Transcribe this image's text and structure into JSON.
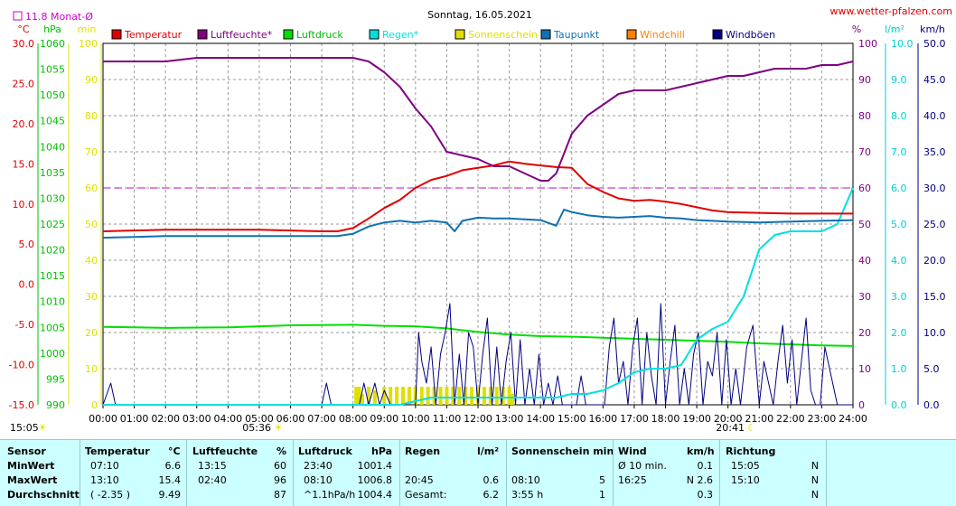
{
  "header": {
    "title": "Sonntag, 16.05.2021",
    "site": "www.wetter-pfalzen.com",
    "monthly_avg": "11.8 Monat-Ø"
  },
  "axes": {
    "temp_unit": "°C",
    "pressure_unit": "hPa",
    "sun_unit": "min",
    "humidity_unit": "%",
    "rain_unit": "l/m²",
    "wind_unit": "km/h",
    "temp_ticks": [
      "30.0",
      "25.0",
      "20.0",
      "15.0",
      "10.0",
      "5.0",
      "0.0",
      "-5.0",
      "-10.0",
      "-15.0"
    ],
    "pressure_ticks": [
      "1060",
      "1055",
      "1050",
      "1045",
      "1040",
      "1035",
      "1030",
      "1025",
      "1020",
      "1015",
      "1010",
      "1005",
      "1000",
      "995",
      "990"
    ],
    "sun_ticks": [
      "100",
      "90",
      "80",
      "70",
      "60",
      "50",
      "40",
      "30",
      "20",
      "10",
      "0"
    ],
    "humidity_ticks": [
      "100",
      "90",
      "80",
      "70",
      "60",
      "50",
      "40",
      "30",
      "20",
      "10",
      "0"
    ],
    "rain_ticks": [
      "10.0",
      "9.0",
      "8.0",
      "7.0",
      "6.0",
      "5.0",
      "4.0",
      "3.0",
      "2.0",
      "1.0",
      "0.0"
    ],
    "wind_ticks": [
      "50.0",
      "45.0",
      "40.0",
      "35.0",
      "30.0",
      "25.0",
      "20.0",
      "15.0",
      "10.0",
      "5.0",
      "0.0"
    ],
    "time_ticks": [
      "00:00",
      "01:00",
      "02:00",
      "03:00",
      "04:00",
      "05:00",
      "06:00",
      "07:00",
      "08:00",
      "09:00",
      "10:00",
      "11:00",
      "12:00",
      "13:00",
      "14:00",
      "15:00",
      "16:00",
      "17:00",
      "18:00",
      "19:00",
      "20:00",
      "21:00",
      "22:00",
      "23:00",
      "24:00"
    ],
    "sunrise": "05:36",
    "sunset": "20:41",
    "current_time": "15:05"
  },
  "chart_data": {
    "type": "line",
    "title": "Sonntag, 16.05.2021",
    "x_unit": "hours",
    "xlim": [
      0,
      24
    ],
    "legend_position": "top",
    "grid": true,
    "series": [
      {
        "name": "Temperatur",
        "color": "#e00000",
        "axis": "°C",
        "ylim": [
          -15,
          30
        ],
        "x": [
          0,
          1,
          2,
          3,
          4,
          5,
          6,
          7,
          7.5,
          8,
          8.5,
          9,
          9.5,
          10,
          10.5,
          11,
          11.5,
          12,
          12.5,
          13,
          13.5,
          14,
          14.5,
          15,
          15.5,
          16,
          16.5,
          17,
          17.5,
          18,
          18.5,
          19,
          19.5,
          20,
          21,
          22,
          23,
          24
        ],
        "y": [
          6.6,
          6.7,
          6.8,
          6.8,
          6.8,
          6.8,
          6.7,
          6.6,
          6.6,
          7.0,
          8.2,
          9.5,
          10.5,
          12.0,
          13.0,
          13.5,
          14.2,
          14.5,
          14.8,
          15.3,
          15.0,
          14.8,
          14.6,
          14.5,
          12.5,
          11.5,
          10.7,
          10.4,
          10.5,
          10.3,
          10.0,
          9.6,
          9.2,
          9.0,
          8.9,
          8.8,
          8.8,
          8.8
        ]
      },
      {
        "name": "Luftfeuchte*",
        "color": "#800080",
        "axis": "%",
        "ylim": [
          0,
          100
        ],
        "x": [
          0,
          1,
          2,
          3,
          4,
          5,
          6,
          7,
          8,
          8.5,
          9,
          9.5,
          10,
          10.5,
          11,
          11.5,
          12,
          12.5,
          13,
          13.5,
          14,
          14.25,
          14.5,
          15,
          15.5,
          16,
          16.5,
          17,
          17.5,
          18,
          18.5,
          19,
          19.5,
          20,
          20.5,
          21,
          21.5,
          22,
          22.5,
          23,
          23.5,
          24
        ],
        "y": [
          95,
          95,
          95,
          96,
          96,
          96,
          96,
          96,
          96,
          95,
          92,
          88,
          82,
          77,
          70,
          69,
          68,
          66,
          66,
          64,
          62,
          62,
          64,
          75,
          80,
          83,
          86,
          87,
          87,
          87,
          88,
          89,
          90,
          91,
          91,
          92,
          93,
          93,
          93,
          94,
          94,
          95
        ]
      },
      {
        "name": "Luftdruck",
        "color": "#00e000",
        "axis": "hPa",
        "ylim": [
          990,
          1060
        ],
        "x": [
          0,
          2,
          4,
          6,
          8,
          9,
          10,
          11,
          12,
          13,
          14,
          15,
          16,
          17,
          18,
          19,
          20,
          21,
          22,
          23,
          24
        ],
        "y": [
          1005.1,
          1004.9,
          1005.0,
          1005.4,
          1005.5,
          1005.3,
          1005.2,
          1004.8,
          1004.1,
          1003.6,
          1003.3,
          1003.2,
          1003.0,
          1002.8,
          1002.6,
          1002.4,
          1002.2,
          1001.9,
          1001.7,
          1001.5,
          1001.4
        ]
      },
      {
        "name": "Regen*",
        "color": "#00e0e0",
        "axis": "l/m²",
        "ylim": [
          0,
          10
        ],
        "x": [
          0,
          9.5,
          10,
          10.5,
          11,
          13,
          14.5,
          15,
          15.5,
          16,
          16.5,
          17,
          17.5,
          18,
          18.5,
          19,
          19.5,
          20,
          20.5,
          21,
          21.5,
          22,
          22.5,
          23,
          23.5,
          24
        ],
        "y": [
          0,
          0,
          0.1,
          0.2,
          0.2,
          0.2,
          0.2,
          0.3,
          0.3,
          0.4,
          0.6,
          0.9,
          1.0,
          1.0,
          1.1,
          1.8,
          2.1,
          2.3,
          3.0,
          4.3,
          4.7,
          4.8,
          4.8,
          4.8,
          5.0,
          6.0
        ]
      },
      {
        "name": "Sonnenschein",
        "color": "#e0e000",
        "axis": "min",
        "ylim": [
          0,
          100
        ],
        "x": [
          8.1,
          8.2,
          8.3,
          8.5,
          8.7,
          9,
          9.2,
          9.4,
          9.6,
          9.8,
          10,
          10.2,
          10.4,
          10.6,
          10.8,
          11,
          11.2,
          11.4,
          11.6,
          11.8,
          12,
          12.2,
          12.4,
          12.6,
          12.8,
          13,
          13.1
        ],
        "y": [
          5,
          5,
          3,
          5,
          4,
          5,
          5,
          5,
          5,
          5,
          5,
          5,
          5,
          5,
          5,
          5,
          5,
          5,
          5,
          5,
          5,
          5,
          5,
          5,
          5,
          5,
          3
        ]
      },
      {
        "name": "Taupunkt",
        "color": "#1070b0",
        "axis": "°C",
        "ylim": [
          -15,
          30
        ],
        "x": [
          0,
          1,
          2,
          3,
          4,
          5,
          6,
          7,
          7.5,
          8,
          8.5,
          9,
          9.5,
          10,
          10.5,
          11,
          11.25,
          11.5,
          12,
          12.5,
          13,
          13.5,
          14,
          14.5,
          14.75,
          15,
          15.5,
          16,
          16.5,
          17,
          17.5,
          18,
          18.5,
          19,
          19.5,
          20,
          21,
          22,
          23,
          24
        ],
        "y": [
          5.8,
          5.9,
          6.0,
          6.0,
          6.0,
          6.0,
          6.0,
          6.0,
          6.0,
          6.3,
          7.2,
          7.7,
          7.9,
          7.7,
          7.9,
          7.7,
          6.6,
          7.9,
          8.3,
          8.2,
          8.2,
          8.1,
          8.0,
          7.3,
          9.3,
          9.0,
          8.6,
          8.4,
          8.3,
          8.4,
          8.5,
          8.3,
          8.2,
          8.0,
          7.9,
          7.8,
          7.7,
          7.8,
          7.9,
          8.0
        ]
      },
      {
        "name": "Windchill",
        "color": "#ff8000",
        "axis": "°C",
        "ylim": [
          -15,
          30
        ],
        "x": [],
        "y": []
      },
      {
        "name": "Windböen",
        "color": "#000080",
        "axis": "km/h",
        "ylim": [
          0,
          50
        ],
        "x": [
          0,
          0.25,
          0.4,
          7,
          7.15,
          7.3,
          8.2,
          8.35,
          8.5,
          8.7,
          8.85,
          9.0,
          9.2,
          9.4,
          9.6,
          9.8,
          10.0,
          10.1,
          10.2,
          10.35,
          10.5,
          10.65,
          10.8,
          10.95,
          11.1,
          11.25,
          11.4,
          11.55,
          11.7,
          11.85,
          12.0,
          12.15,
          12.3,
          12.45,
          12.6,
          12.75,
          12.9,
          13.05,
          13.2,
          13.35,
          13.5,
          13.65,
          13.8,
          13.95,
          14.1,
          14.25,
          14.4,
          14.55,
          14.7,
          14.85,
          15.0,
          15.15,
          15.3,
          15.45,
          15.6,
          15.75,
          15.9,
          16.05,
          16.2,
          16.35,
          16.5,
          16.65,
          16.8,
          16.95,
          17.1,
          17.25,
          17.4,
          17.55,
          17.7,
          17.85,
          18.0,
          18.15,
          18.3,
          18.45,
          18.6,
          18.75,
          18.9,
          19.05,
          19.2,
          19.35,
          19.5,
          19.65,
          19.8,
          19.95,
          20.1,
          20.25,
          20.4,
          20.6,
          20.8,
          21.0,
          21.15,
          21.3,
          21.45,
          21.6,
          21.75,
          21.9,
          22.05,
          22.2,
          22.35,
          22.5,
          22.65,
          22.8,
          22.95,
          23.1,
          23.3,
          23.5,
          23.7,
          23.85,
          24.0
        ],
        "y": [
          0,
          3,
          0,
          0,
          3,
          0,
          0,
          3,
          0,
          3,
          0,
          2,
          0,
          0,
          0,
          0,
          0,
          10,
          6,
          3,
          8,
          0,
          7,
          10,
          14,
          0,
          7,
          0,
          10,
          8,
          0,
          7,
          12,
          0,
          8,
          0,
          6,
          10,
          0,
          9,
          0,
          5,
          0,
          7,
          0,
          3,
          0,
          4,
          0,
          0,
          0,
          0,
          4,
          0,
          0,
          0,
          0,
          0,
          8,
          12,
          3,
          6,
          0,
          8,
          12,
          0,
          10,
          4,
          0,
          14,
          0,
          6,
          11,
          0,
          5,
          0,
          7,
          10,
          0,
          6,
          4,
          10,
          0,
          9,
          0,
          5,
          0,
          8,
          11,
          0,
          6,
          3,
          0,
          6,
          11,
          3,
          9,
          0,
          6,
          12,
          2,
          0,
          0,
          8,
          4,
          0,
          0,
          0,
          0
        ]
      }
    ],
    "reference_lines": [
      {
        "label": "60 %",
        "axis": "%",
        "value": 60,
        "color": "#cc00cc",
        "style": "dashed"
      }
    ]
  },
  "legend": [
    {
      "label": "Temperatur",
      "color": "#e00000",
      "text_color": "#e00000"
    },
    {
      "label": "Luftfeuchte*",
      "color": "#800080",
      "text_color": "#800080"
    },
    {
      "label": "Luftdruck",
      "color": "#00e000",
      "text_color": "#00c000"
    },
    {
      "label": "Regen*",
      "color": "#00e0e0",
      "text_color": "#00e0e0"
    },
    {
      "label": "Sonnenschein",
      "color": "#e0e000",
      "text_color": "#e0e000"
    },
    {
      "label": "Taupunkt",
      "color": "#1070b0",
      "text_color": "#1070b0"
    },
    {
      "label": "Windchill",
      "color": "#ff8000",
      "text_color": "#ff8000"
    },
    {
      "label": "Windböen",
      "color": "#000080",
      "text_color": "#000080"
    }
  ],
  "stats": {
    "headers": {
      "sensor": "Sensor",
      "temp": "Temperatur",
      "temp_unit": "°C",
      "hum": "Luftfeuchte",
      "hum_unit": "%",
      "press": "Luftdruck",
      "press_unit": "hPa",
      "rain": "Regen",
      "rain_unit": "l/m²",
      "sun": "Sonnenschein min",
      "wind": "Wind",
      "wind_unit": "km/h",
      "dir": "Richtung"
    },
    "rows": [
      {
        "label": "MinWert",
        "temp_time": "07:10",
        "temp_val": "6.6",
        "hum_time": "13:15",
        "hum_val": "60",
        "press_time": "23:40",
        "press_val": "1001.4",
        "rain_time": "",
        "rain_val": "",
        "sun_time": "",
        "sun_val": "",
        "wind_time": "Ø 10 min.",
        "wind_val": "0.1",
        "dir_time": "15:05",
        "dir_val": "N"
      },
      {
        "label": "MaxWert",
        "temp_time": "13:10",
        "temp_val": "15.4",
        "hum_time": "02:40",
        "hum_val": "96",
        "press_time": "08:10",
        "press_val": "1006.8",
        "rain_time": "20:45",
        "rain_val": "0.6",
        "sun_time": "08:10",
        "sun_val": "5",
        "wind_time": "16:25",
        "wind_val": "N 2.6",
        "dir_time": "15:10",
        "dir_val": "N"
      },
      {
        "label": "Durchschnitt",
        "temp_time": "( -2.35 )",
        "temp_val": "9.49",
        "hum_time": "",
        "hum_val": "87",
        "press_time": "^1.1hPa/h",
        "press_val": "1004.4",
        "rain_time": "Gesamt:",
        "rain_val": "6.2",
        "sun_time": "3:55 h",
        "sun_val": "1",
        "wind_time": "",
        "wind_val": "0.3",
        "dir_time": "",
        "dir_val": "N"
      }
    ]
  }
}
